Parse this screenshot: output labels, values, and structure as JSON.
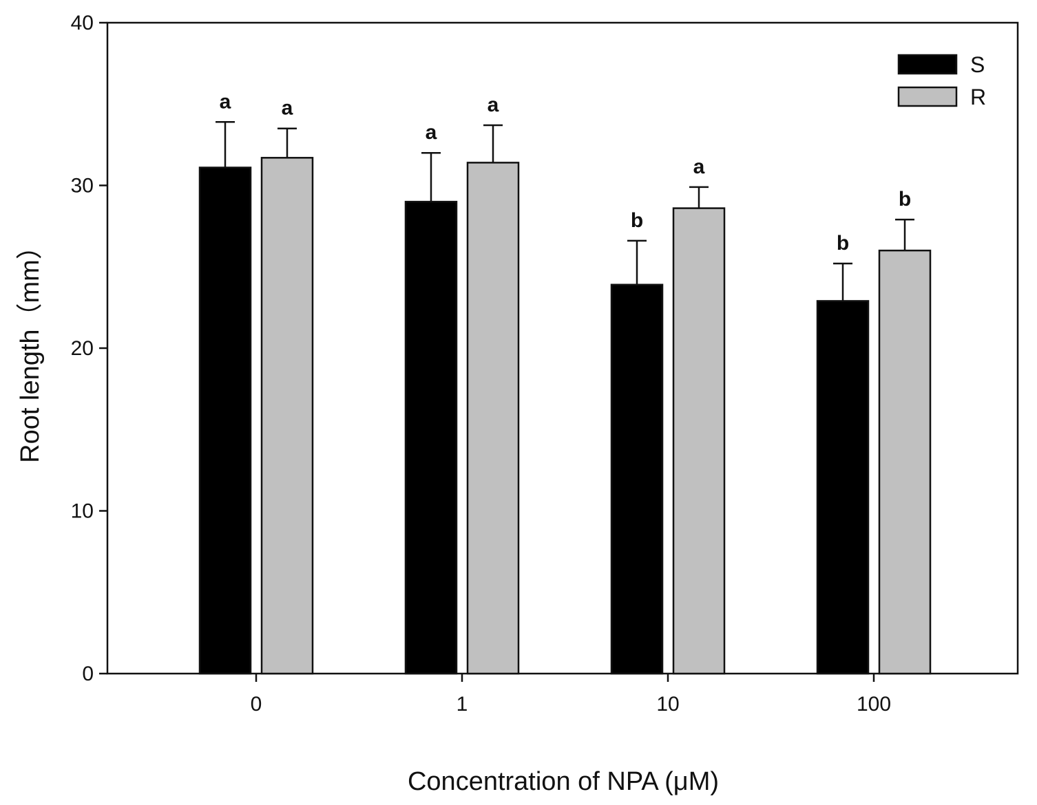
{
  "chart_data": {
    "type": "bar",
    "title": "",
    "xlabel": "Concentration of NPA (μM)",
    "ylabel": "Root length（mm）",
    "categories": [
      "0",
      "1",
      "10",
      "100"
    ],
    "ylim": [
      0,
      40
    ],
    "yticks": [
      0,
      10,
      20,
      30,
      40
    ],
    "grid": false,
    "legend_position": "top-right",
    "series": [
      {
        "name": "S",
        "color": "#000000",
        "values": [
          31.1,
          29.0,
          23.9,
          22.9
        ],
        "errors": [
          2.8,
          3.0,
          2.7,
          2.3
        ],
        "labels": [
          "a",
          "a",
          "b",
          "b"
        ]
      },
      {
        "name": "R",
        "color": "#c0c0c0",
        "values": [
          31.7,
          31.4,
          28.6,
          26.0
        ],
        "errors": [
          1.8,
          2.3,
          1.3,
          1.9
        ],
        "labels": [
          "a",
          "a",
          "a",
          "b"
        ]
      }
    ]
  }
}
